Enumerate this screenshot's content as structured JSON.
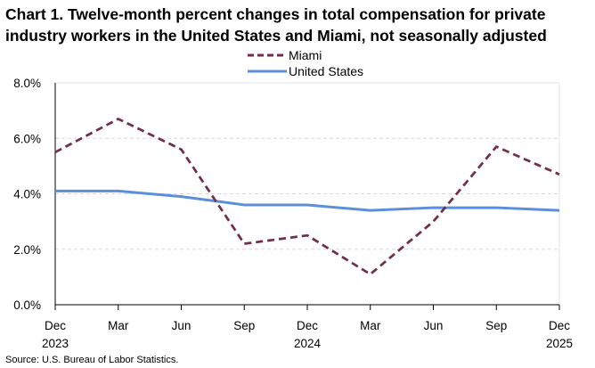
{
  "chart_data": {
    "type": "line",
    "title": "Chart 1. Twelve-month percent changes in total compensation for private industry workers in the United States and Miami, not seasonally adjusted",
    "categories": [
      "Dec 2023",
      "Mar",
      "Jun",
      "Sep",
      "Dec 2024",
      "Mar",
      "Jun",
      "Sep",
      "Dec 2025"
    ],
    "x_tick_labels": [
      [
        "Dec",
        "2023"
      ],
      [
        "Mar",
        ""
      ],
      [
        "Jun",
        ""
      ],
      [
        "Sep",
        ""
      ],
      [
        "Dec",
        "2024"
      ],
      [
        "Mar",
        ""
      ],
      [
        "Jun",
        ""
      ],
      [
        "Sep",
        ""
      ],
      [
        "Dec",
        "2025"
      ]
    ],
    "series": [
      {
        "name": "Miami",
        "values": [
          5.5,
          6.7,
          5.6,
          2.2,
          2.5,
          1.1,
          3.0,
          5.7,
          4.7
        ],
        "color": "#722F4A",
        "style": "dashed"
      },
      {
        "name": "United States",
        "values": [
          4.1,
          4.1,
          3.9,
          3.6,
          3.6,
          3.4,
          3.5,
          3.5,
          3.4
        ],
        "color": "#5B8FDB",
        "style": "solid"
      }
    ],
    "ylim": [
      0,
      8
    ],
    "y_ticks": [
      "0.0%",
      "2.0%",
      "4.0%",
      "6.0%",
      "8.0%"
    ],
    "grid": true,
    "legend_position": "top-center",
    "xlabel": "",
    "ylabel": ""
  },
  "source": "Source: U.S. Bureau of Labor Statistics."
}
